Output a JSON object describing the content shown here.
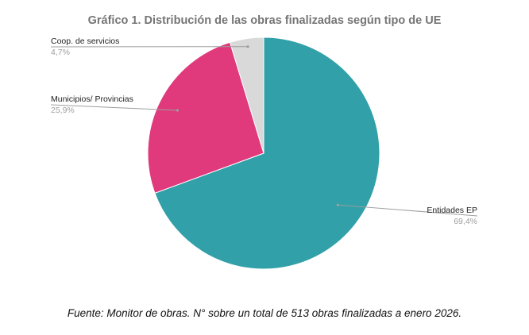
{
  "chart_data": {
    "type": "pie",
    "title": "Gráfico 1. Distribución de las obras finalizadas según tipo de UE",
    "slices": [
      {
        "label": "Entidades EP",
        "value": 69.4,
        "display": "69,4%",
        "color": "#31a0a8"
      },
      {
        "label": "Municipios/ Provincias",
        "value": 25.9,
        "display": "25,9%",
        "color": "#e0397c"
      },
      {
        "label": "Coop. de servicios",
        "value": 4.7,
        "display": "4,7%",
        "color": "#d9d9d9"
      }
    ],
    "start": "12 o'clock",
    "direction": "clockwise",
    "legend": "none (callout labels beside slices)"
  },
  "caption": "Fuente: Monitor de obras. N° sobre un total de 513 obras finalizadas a enero 2026."
}
